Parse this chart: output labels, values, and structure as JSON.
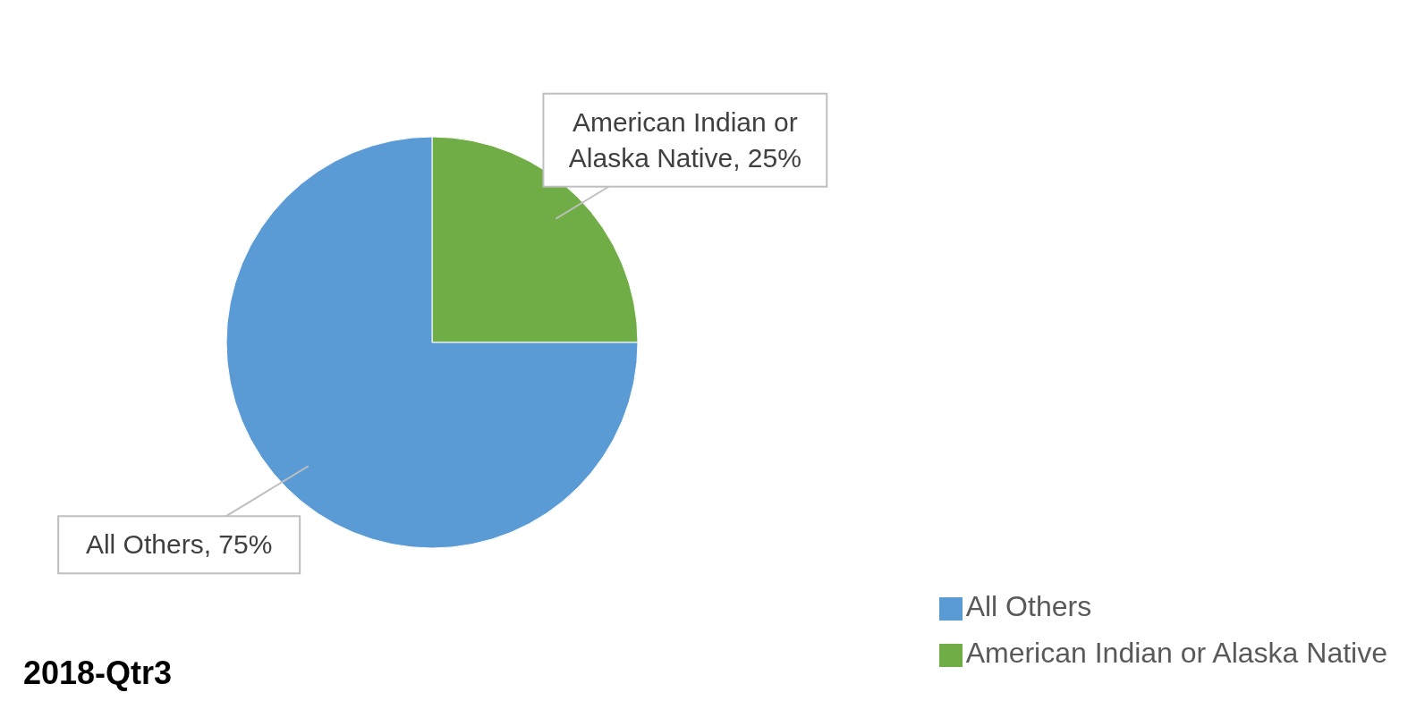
{
  "chart_data": {
    "type": "pie",
    "title": "2018-Qtr3",
    "categories": [
      "American Indian or Alaska Native",
      "All Others"
    ],
    "values": [
      25,
      75
    ],
    "colors": [
      "#70ad47",
      "#5b9bd5"
    ],
    "value_labels": [
      "American Indian or Alaska Native, 25%",
      "All Others, 75%"
    ],
    "legend": "bottom right"
  }
}
